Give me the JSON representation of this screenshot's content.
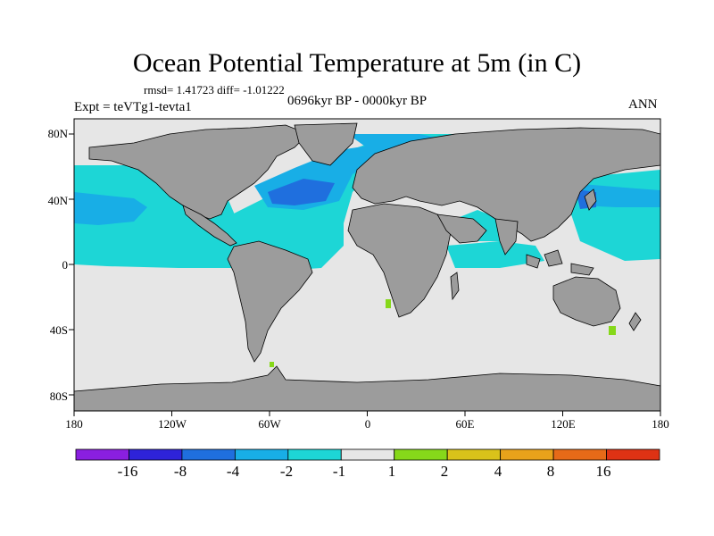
{
  "title": "Ocean Potential Temperature at 5m (in C)",
  "stats": "rmsd= 1.41723 diff= -1.01222",
  "experiment": "Expt = teVTg1-tevta1",
  "period": "0696kyr BP - 0000kyr BP",
  "season": "ANN",
  "lat_ticks": [
    "80N",
    "40N",
    "0",
    "40S",
    "80S"
  ],
  "lon_ticks": [
    "180",
    "120W",
    "60W",
    "0",
    "60E",
    "120E",
    "180"
  ],
  "colorbar": {
    "labels": [
      "-16",
      "-8",
      "-4",
      "-2",
      "-1",
      "1",
      "2",
      "4",
      "8",
      "16"
    ],
    "colors": [
      "#8a1fe0",
      "#2e23d9",
      "#1f6fde",
      "#18aee6",
      "#1dd6d6",
      "#e6e6e6",
      "#86d81a",
      "#d9c21a",
      "#e8a21b",
      "#e66a18",
      "#de3214"
    ]
  },
  "map_colors": {
    "land": "#9c9c9c",
    "ocean_neutral": "#e6e6e6",
    "coastline": "#000000"
  }
}
